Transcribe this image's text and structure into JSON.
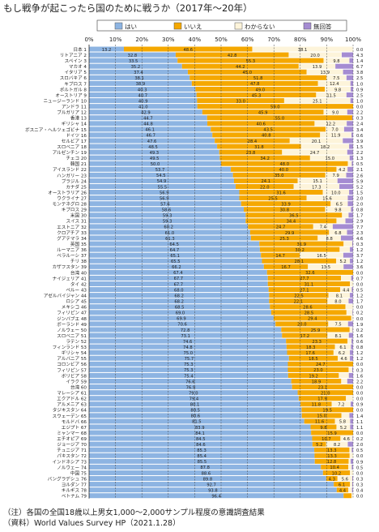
{
  "title": "もし戦争が起こったら国のために戦うか（2017年〜20年）",
  "notes": [
    "（注）各国の全国18歳以上男女1,000〜2,000サンプル程度の意識調査結果",
    "（資料）World Values Survey HP（2021.1.28）"
  ],
  "colors": {
    "yes": "#8DB4E2",
    "no": "#F5A800",
    "dk": "#FDF4DA",
    "na": "#A58CD2",
    "grid": "#444444"
  },
  "chart_data": {
    "type": "bar",
    "orientation": "horizontal-stacked-percent",
    "xlim": [
      0,
      100
    ],
    "x_ticks": [
      "0%",
      "10%",
      "20%",
      "30%",
      "40%",
      "50%",
      "60%",
      "70%",
      "80%",
      "90%",
      "100%"
    ],
    "series": [
      {
        "key": "yes",
        "name": "はい"
      },
      {
        "key": "no",
        "name": "いいえ"
      },
      {
        "key": "dk",
        "name": "わからない"
      },
      {
        "key": "na",
        "name": "無回答"
      }
    ],
    "rows": [
      {
        "label": "日本 1",
        "yes": 13.2,
        "no": 48.6,
        "dk": 38.1,
        "na": 0.0
      },
      {
        "label": "リトアニア 2",
        "yes": 32.8,
        "no": 42.8,
        "dk": 20.0,
        "na": 4.3
      },
      {
        "label": "スペイン 3",
        "yes": 33.5,
        "no": 55.3,
        "dk": 9.8,
        "na": 1.4
      },
      {
        "label": "マカオ 4",
        "yes": 35.2,
        "no": 44.2,
        "dk": 13.9,
        "na": 6.7
      },
      {
        "label": "イタリア 5",
        "yes": 37.4,
        "no": 45.0,
        "dk": 13.9,
        "na": 3.8
      },
      {
        "label": "スロバキア 6",
        "yes": 38.1,
        "no": 51.8,
        "dk": 7.5,
        "na": 2.5
      },
      {
        "label": "キプロス 7",
        "yes": 38.9,
        "no": 47.8,
        "dk": 12.4,
        "na": 1.0
      },
      {
        "label": "ポルトガル 8",
        "yes": 40.3,
        "no": 49.0,
        "dk": 9.8,
        "na": 0.9
      },
      {
        "label": "オーストリア 9",
        "yes": 40.7,
        "no": 45.3,
        "dk": 11.5,
        "na": 2.5
      },
      {
        "label": "ニュージーランド 10",
        "yes": 40.9,
        "no": 33.0,
        "dk": 25.1,
        "na": 1.0
      },
      {
        "label": "アンドラ 11",
        "yes": 41.0,
        "no": 59.0,
        "dk": 0.0,
        "na": 0.0
      },
      {
        "label": "ブルガリア 12",
        "yes": 42.9,
        "no": 45.9,
        "dk": 9.0,
        "na": 2.2
      },
      {
        "label": "香港 13",
        "yes": 44.7,
        "no": 55.0,
        "dk": 0.0,
        "na": 0.3
      },
      {
        "label": "ギリシャ 14",
        "yes": 44.8,
        "no": 40.6,
        "dk": 12.2,
        "na": 2.4
      },
      {
        "label": "ボスニア・ヘルツェゴビナ 15",
        "yes": 46.1,
        "no": 43.5,
        "dk": 7.0,
        "na": 3.4
      },
      {
        "label": "ドイツ 16",
        "yes": 46.7,
        "no": 40.8,
        "dk": 11.9,
        "na": 0.6
      },
      {
        "label": "セルビア 17",
        "yes": 47.6,
        "no": 28.4,
        "dk": 20.1,
        "na": 3.9
      },
      {
        "label": "スロベニア 18",
        "yes": 48.5,
        "no": 31.8,
        "dk": 18.2,
        "na": 1.5
      },
      {
        "label": "アルゼンチン 19",
        "yes": 49.3,
        "no": 23.8,
        "dk": 24.7,
        "na": 2.2
      },
      {
        "label": "チェコ 20",
        "yes": 49.5,
        "no": 34.2,
        "dk": 15.0,
        "na": 1.3
      },
      {
        "label": "韓国 21",
        "yes": 50.0,
        "no": 48.0,
        "dk": 1.5,
        "na": 0.5
      },
      {
        "label": "アイスランド 22",
        "yes": 53.7,
        "no": 40.0,
        "dk": 4.2,
        "na": 2.1
      },
      {
        "label": "ハンガリー 23",
        "yes": 54.5,
        "no": 35.0,
        "dk": 7.9,
        "na": 2.6
      },
      {
        "label": "ブラジル 24",
        "yes": 54.9,
        "no": 24.1,
        "dk": 15.1,
        "na": 5.9
      },
      {
        "label": "カナダ 25",
        "yes": 55.5,
        "no": 22.0,
        "dk": 17.3,
        "na": 5.2
      },
      {
        "label": "オーストラリア 26",
        "yes": 56.9,
        "no": 31.6,
        "dk": 10.0,
        "na": 1.5
      },
      {
        "label": "ウクライナ 27",
        "yes": 56.9,
        "no": 25.5,
        "dk": 15.6,
        "na": 2.0
      },
      {
        "label": "モンテネグロ 28",
        "yes": 57.6,
        "no": 33.9,
        "dk": 6.5,
        "na": 2.0
      },
      {
        "label": "キプロス 29",
        "yes": 58.6,
        "no": 30.8,
        "dk": 9.8,
        "na": 0.8
      },
      {
        "label": "米国 30",
        "yes": 59.3,
        "no": 36.5,
        "dk": 2.5,
        "na": 1.7
      },
      {
        "label": "スイス 31",
        "yes": 59.3,
        "no": 34.4,
        "dk": 3.4,
        "na": 2.9
      },
      {
        "label": "エストニア 32",
        "yes": 60.2,
        "no": 24.7,
        "dk": 7.4,
        "na": 7.7
      },
      {
        "label": "クロアチア 33",
        "yes": 61.0,
        "no": 29.9,
        "dk": 6.8,
        "na": 2.3
      },
      {
        "label": "グアテマラ 34",
        "yes": 61.3,
        "no": 25.3,
        "dk": 8.8,
        "na": 4.6
      },
      {
        "label": "英国 35",
        "yes": 64.5,
        "no": 31.9,
        "dk": 3.3,
        "na": 0.3
      },
      {
        "label": "ルーマニア 36",
        "yes": 64.7,
        "no": 30.2,
        "dk": 3.9,
        "na": 1.2
      },
      {
        "label": "ベラルーシ 37",
        "yes": 65.1,
        "no": 14.7,
        "dk": 16.5,
        "na": 3.7
      },
      {
        "label": "チリ 38",
        "yes": 65.5,
        "no": 28.1,
        "dk": 5.2,
        "na": 1.2
      },
      {
        "label": "カザフスタン 39",
        "yes": 66.2,
        "no": 16.7,
        "dk": 13.5,
        "na": 3.6
      },
      {
        "label": "台湾 40",
        "yes": 67.4,
        "no": 32.6,
        "dk": 0.0,
        "na": 0.0
      },
      {
        "label": "ナイジェリア 41",
        "yes": 67.7,
        "no": 27.7,
        "dk": 3.9,
        "na": 0.7
      },
      {
        "label": "タイ 42",
        "yes": 67.7,
        "no": 31.1,
        "dk": 1.2,
        "na": 0.0
      },
      {
        "label": "ペルー 43",
        "yes": 68.0,
        "no": 27.1,
        "dk": 4.4,
        "na": 0.5
      },
      {
        "label": "アゼルバイジャン 44",
        "yes": 68.2,
        "no": 22.5,
        "dk": 8.1,
        "na": 1.2
      },
      {
        "label": "ロシア 45",
        "yes": 68.2,
        "no": 22.1,
        "dk": 8.0,
        "na": 1.7
      },
      {
        "label": "メキシコ 46",
        "yes": 68.5,
        "no": 28.6,
        "dk": 2.9,
        "na": 0.0
      },
      {
        "label": "フィリピン 47",
        "yes": 69.0,
        "no": 28.5,
        "dk": 2.3,
        "na": 0.2
      },
      {
        "label": "ジンバブエ 48",
        "yes": 69.9,
        "no": 29.4,
        "dk": 0.7,
        "na": 0.0
      },
      {
        "label": "ボーランド 49",
        "yes": 70.6,
        "no": 20.0,
        "dk": 7.5,
        "na": 1.9
      },
      {
        "label": "ノルウェー 50",
        "yes": 72.8,
        "no": 25.9,
        "dk": 1.1,
        "na": 0.2
      },
      {
        "label": "スロベニア 51",
        "yes": 73.1,
        "no": 17.2,
        "dk": 8.1,
        "na": 1.6
      },
      {
        "label": "ラテン 52",
        "yes": 74.6,
        "no": 23.3,
        "dk": 1.5,
        "na": 0.6
      },
      {
        "label": "フィンランド 53",
        "yes": 74.8,
        "no": 18.3,
        "dk": 6.1,
        "na": 0.8
      },
      {
        "label": "ギリシャ 54",
        "yes": 75.0,
        "no": 17.6,
        "dk": 6.2,
        "na": 1.2
      },
      {
        "label": "アルバニア 55",
        "yes": 75.7,
        "no": 18.5,
        "dk": 4.6,
        "na": 1.2
      },
      {
        "label": "コロンビア 56",
        "yes": 75.3,
        "no": 24.7,
        "dk": 0.0,
        "na": 0.0
      },
      {
        "label": "フィリピン 57",
        "yes": 75.3,
        "no": 23.0,
        "dk": 1.4,
        "na": 0.3
      },
      {
        "label": "ボリビア 58",
        "yes": 75.4,
        "no": 19.2,
        "dk": 3.8,
        "na": 1.6
      },
      {
        "label": "イラク 59",
        "yes": 76.6,
        "no": 18.9,
        "dk": 2.3,
        "na": 2.2
      },
      {
        "label": "台湾 60",
        "yes": 76.9,
        "no": 23.1,
        "dk": 0.0,
        "na": 0.0
      },
      {
        "label": "マレーシア 61",
        "yes": 79.0,
        "no": 21.0,
        "dk": 0.0,
        "na": 0.0
      },
      {
        "label": "エクアドル 62",
        "yes": 79.4,
        "no": 17.9,
        "dk": 2.7,
        "na": 0.0
      },
      {
        "label": "アルメニア 63",
        "yes": 80.1,
        "no": 11.8,
        "dk": 7.2,
        "na": 0.9
      },
      {
        "label": "タジキスタン 64",
        "yes": 80.5,
        "no": 19.5,
        "dk": 0.0,
        "na": 0.0
      },
      {
        "label": "スウェーデン 65",
        "yes": 80.6,
        "no": 15.0,
        "dk": 3.0,
        "na": 1.4
      },
      {
        "label": "モルドバ 66",
        "yes": 81.5,
        "no": 11.6,
        "dk": 5.8,
        "na": 1.1
      },
      {
        "label": "エジプト 67",
        "yes": 83.9,
        "no": 9.8,
        "dk": 5.2,
        "na": 1.1
      },
      {
        "label": "ミャンマー 68",
        "yes": 84.1,
        "no": 15.9,
        "dk": 0.0,
        "na": 0.0
      },
      {
        "label": "エチオピア 69",
        "yes": 84.5,
        "no": 10.7,
        "dk": 4.6,
        "na": 0.2
      },
      {
        "label": "ジョージア 70",
        "yes": 84.6,
        "no": 5.2,
        "dk": 8.2,
        "na": 2.0
      },
      {
        "label": "チュニジア 71",
        "yes": 85.3,
        "no": 13.3,
        "dk": 0.9,
        "na": 0.5
      },
      {
        "label": "パキスタン 72",
        "yes": 85.4,
        "no": 13.3,
        "dk": 1.3,
        "na": 0.0
      },
      {
        "label": "インドネシア 73",
        "yes": 85.5,
        "no": 12.8,
        "dk": 0.8,
        "na": 0.9
      },
      {
        "label": "ノルウェー 74",
        "yes": 87.8,
        "no": 10.4,
        "dk": 1.3,
        "na": 0.5
      },
      {
        "label": "中国 75",
        "yes": 88.6,
        "no": 10.2,
        "dk": 1.2,
        "na": 0.0
      },
      {
        "label": "バングラデシュ 76",
        "yes": 89.8,
        "no": 4.3,
        "dk": 5.6,
        "na": 0.3
      },
      {
        "label": "ヨルダン 77",
        "yes": 92.7,
        "no": 6.1,
        "dk": 0.9,
        "na": 0.3
      },
      {
        "label": "キルギス 78",
        "yes": 93.8,
        "no": 4.4,
        "dk": 1.4,
        "na": 0.4
      },
      {
        "label": "ベトナム 79",
        "yes": 96.4,
        "no": 3.0,
        "dk": 0.6,
        "na": 0.0
      }
    ]
  }
}
